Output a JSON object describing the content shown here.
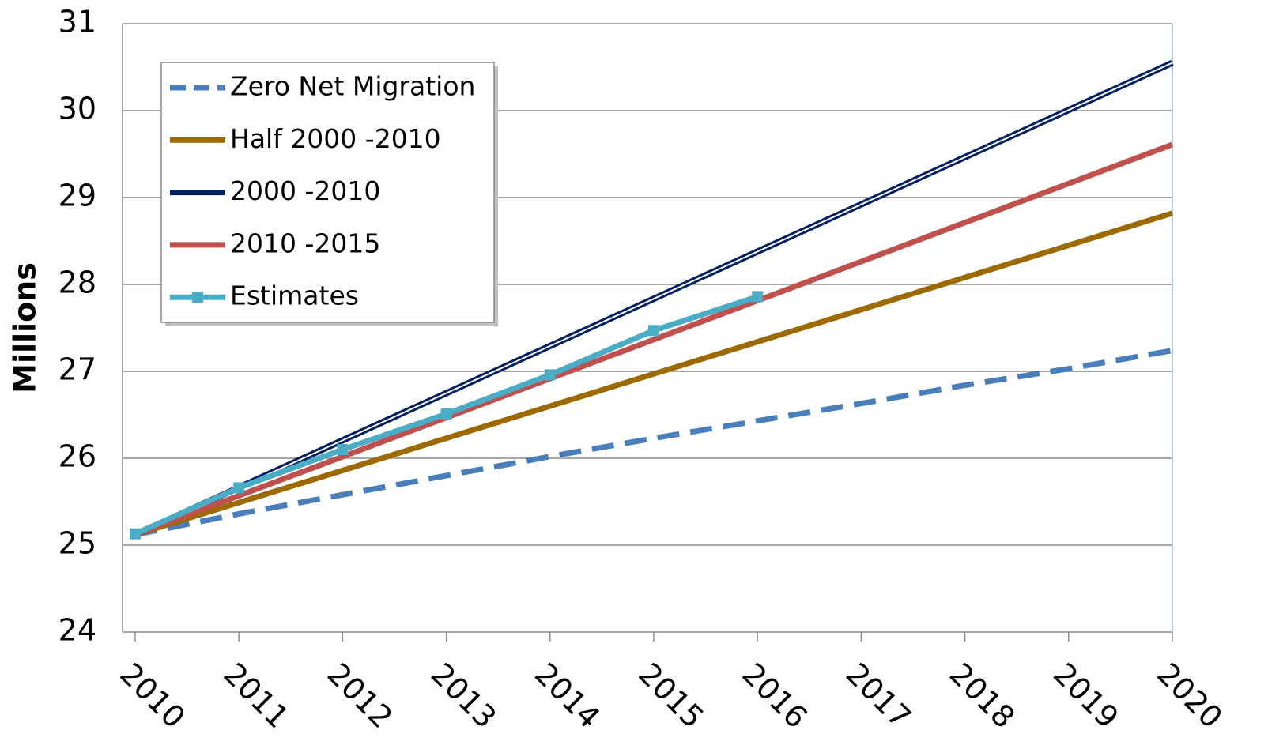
{
  "chart_data": {
    "type": "line",
    "ylabel": "Millions",
    "xlim": [
      2010,
      2020
    ],
    "xticks": [
      2010,
      2011,
      2012,
      2013,
      2014,
      2015,
      2016,
      2017,
      2018,
      2019,
      2020
    ],
    "ylim": [
      24,
      31
    ],
    "yticks": [
      24,
      25,
      26,
      27,
      28,
      29,
      30,
      31
    ],
    "grid": true,
    "legend": "upper left",
    "series": [
      {
        "name": "Zero Net Migration",
        "color": "#4a7ebb",
        "dashed": true,
        "x": [
          2010,
          2011,
          2012,
          2013,
          2014,
          2015,
          2016,
          2017,
          2018,
          2019,
          2020
        ],
        "values": [
          25.12,
          25.36,
          25.58,
          25.8,
          26.02,
          26.23,
          26.43,
          26.63,
          26.84,
          27.03,
          27.24
        ]
      },
      {
        "name": "Half 2000 -2010",
        "color": "#9c6a00",
        "x": [
          2010,
          2020
        ],
        "values": [
          25.12,
          28.82
        ]
      },
      {
        "name": "2000 -2010",
        "color": "#002060",
        "double": true,
        "x": [
          2010,
          2020
        ],
        "values": [
          25.12,
          30.55
        ]
      },
      {
        "name": "2010 -2015",
        "color": "#c0504d",
        "x": [
          2010,
          2020
        ],
        "values": [
          25.12,
          29.61
        ]
      },
      {
        "name": "Estimates",
        "color": "#4bacc6",
        "markers": true,
        "x": [
          2010,
          2011,
          2012,
          2013,
          2014,
          2015,
          2016
        ],
        "values": [
          25.13,
          25.66,
          26.1,
          26.51,
          26.96,
          27.47,
          27.86
        ]
      }
    ]
  }
}
